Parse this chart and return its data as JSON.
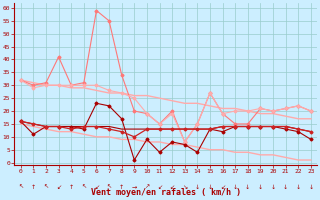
{
  "x": [
    0,
    1,
    2,
    3,
    4,
    5,
    6,
    7,
    8,
    9,
    10,
    11,
    12,
    13,
    14,
    15,
    16,
    17,
    18,
    19,
    20,
    21,
    22,
    23
  ],
  "line_rafales_spike": [
    32,
    30,
    31,
    41,
    30,
    31,
    59,
    55,
    34,
    20,
    19,
    15,
    20,
    8,
    15,
    27,
    19,
    15,
    15,
    21,
    20,
    21,
    22,
    20
  ],
  "line_rafales_upper": [
    32,
    29,
    30,
    30,
    30,
    30,
    30,
    28,
    27,
    25,
    19,
    15,
    19,
    8,
    15,
    27,
    19,
    20,
    20,
    21,
    20,
    21,
    22,
    20
  ],
  "trend_upper": [
    32,
    31,
    30,
    30,
    29,
    29,
    28,
    27,
    27,
    26,
    26,
    25,
    24,
    23,
    23,
    22,
    21,
    21,
    20,
    19,
    19,
    18,
    17,
    17
  ],
  "trend_lower": [
    15,
    14,
    13,
    12,
    12,
    11,
    10,
    10,
    9,
    9,
    8,
    8,
    7,
    7,
    6,
    5,
    5,
    4,
    4,
    3,
    3,
    2,
    1,
    1
  ],
  "line_vent_var": [
    16,
    11,
    14,
    14,
    14,
    13,
    23,
    22,
    17,
    1,
    9,
    4,
    8,
    7,
    4,
    13,
    12,
    14,
    14,
    14,
    14,
    13,
    12,
    9
  ],
  "line_vent_mean": [
    16,
    15,
    14,
    14,
    13,
    14,
    14,
    13,
    12,
    10,
    13,
    13,
    13,
    13,
    13,
    13,
    14,
    14,
    14,
    14,
    14,
    14,
    13,
    12
  ],
  "line_vent_flat": [
    16,
    15,
    14,
    14,
    14,
    14,
    14,
    14,
    13,
    13,
    13,
    13,
    13,
    13,
    13,
    13,
    14,
    14,
    14,
    14,
    14,
    14,
    13,
    12
  ],
  "bg_color": "#cceeff",
  "grid_color": "#99cccc",
  "color_light_pink": "#ffaaaa",
  "color_mid_pink": "#ff7777",
  "color_red": "#cc2222",
  "color_dark_red": "#aa0000",
  "xlabel": "Vent moyen/en rafales ( km/h )",
  "ylabel_ticks": [
    0,
    5,
    10,
    15,
    20,
    25,
    30,
    35,
    40,
    45,
    50,
    55,
    60
  ],
  "xlim": [
    -0.5,
    23.5
  ],
  "ylim": [
    -1,
    62
  ],
  "wind_dirs": [
    "↖",
    "↑",
    "↖",
    "↙",
    "↑",
    "↖",
    "↙",
    "↖",
    "↑",
    "→",
    "↗",
    "↙",
    "↙",
    "↘",
    "↓",
    "↓",
    "↙",
    "↓",
    "↓",
    "↓",
    "↓",
    "↓",
    "↓",
    "↓"
  ]
}
